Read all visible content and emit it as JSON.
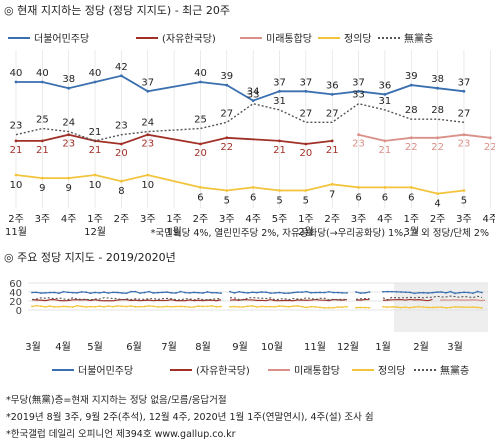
{
  "titles": {
    "main": "◎ 현재 지지하는 정당 (정당 지지도) - 최근 20주",
    "sub": "◎ 주요 정당 지지도 - 2019/2020년"
  },
  "note": "*국민의당 4%, 열린민주당 2%, 자유공화당(→우리공화당) 1%, 그 외 정당/단체 2%",
  "footnotes": [
    "*무당(無黨)층=현재 지지하는 정당 없음/모름/응답거절",
    "*2019년 8월 3주, 9월 2주(추석), 12월 4주, 2020년 1월 1주(연말연시), 4주(설) 조사 쉼",
    "*한국갤럽 데일리 오피니언 제394호 www.gallup.co.kr"
  ],
  "colors": {
    "democratic": "#3a6fb0",
    "liberty": "#a03028",
    "united": "#d99088",
    "justice": "#f2c43c",
    "nonpartisan": "#555555",
    "grid": "#dddddd"
  },
  "chart_data": [
    {
      "type": "line",
      "x_labels": [
        [
          "2주",
          "11월"
        ],
        [
          "3주",
          ""
        ],
        [
          "4주",
          ""
        ],
        [
          "1주",
          "12월"
        ],
        [
          "2주",
          ""
        ],
        [
          "3주",
          ""
        ],
        [
          "1주",
          "1월"
        ],
        [
          "2주",
          ""
        ],
        [
          "3주",
          ""
        ],
        [
          "4주",
          ""
        ],
        [
          "5주",
          ""
        ],
        [
          "1주",
          "2월"
        ],
        [
          "2주",
          ""
        ],
        [
          "3주",
          ""
        ],
        [
          "4주",
          ""
        ],
        [
          "1주",
          "3월"
        ],
        [
          "2주",
          ""
        ],
        [
          "3주",
          ""
        ],
        [
          "4주",
          ""
        ]
      ],
      "series": [
        {
          "name": "더불어민주당",
          "key": "democratic",
          "values": [
            40,
            40,
            38,
            40,
            42,
            37,
            40,
            39,
            34,
            37,
            37,
            36,
            37,
            36,
            39,
            38,
            37
          ]
        },
        {
          "name": "(자유한국당)",
          "key": "liberty",
          "values": [
            21,
            21,
            23,
            21,
            20,
            23,
            20,
            22,
            21,
            20,
            21
          ]
        },
        {
          "name": "미래통합당",
          "key": "united",
          "values": [
            23,
            21,
            22,
            22,
            23,
            22
          ]
        },
        {
          "name": "정의당",
          "key": "justice",
          "values": [
            10,
            9,
            9,
            10,
            8,
            10,
            6,
            5,
            6,
            5,
            5,
            7,
            6,
            6,
            6,
            4,
            5
          ]
        },
        {
          "name": "無黨층",
          "key": "nonpartisan",
          "dashed": true,
          "values": [
            23,
            25,
            24,
            21,
            23,
            24,
            25,
            27,
            33,
            31,
            27,
            27,
            33,
            31,
            28,
            28,
            27
          ]
        }
      ]
    },
    {
      "type": "line",
      "ylim": [
        0,
        60
      ],
      "yticks": [
        0,
        20,
        40,
        60
      ],
      "x_labels": [
        "3월",
        "4월",
        "5월",
        "6월",
        "7월",
        "8월",
        "9월",
        "10월",
        "11월",
        "12월",
        "1월",
        "2월",
        "3월"
      ],
      "legend": [
        "더불어민주당",
        "(자유한국당)",
        "미래통합당",
        "정의당",
        "無黨층"
      ]
    }
  ]
}
